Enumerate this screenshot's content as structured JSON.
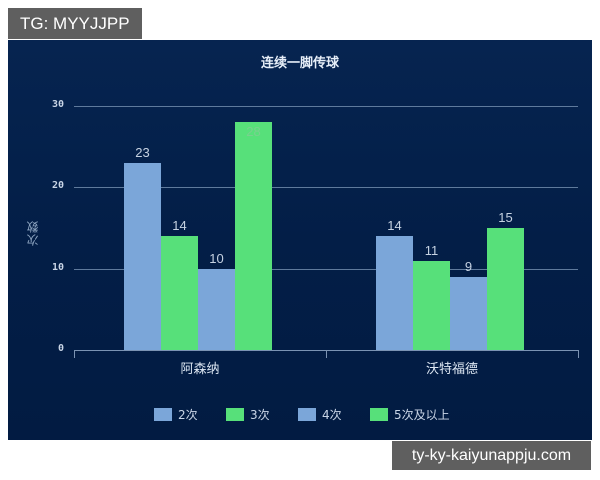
{
  "watermarks": {
    "top_left": "TG: MYYJJPP",
    "bottom_right": "ty-ky-kaiyunappju.com"
  },
  "colors": {
    "background": "#03204a",
    "series_blue": "#7ba6d9",
    "series_green": "#57e07a"
  },
  "chart_data": {
    "type": "bar",
    "title": "连续一脚传球",
    "xlabel": "",
    "ylabel": "次数",
    "ylim": [
      0,
      30
    ],
    "yticks": [
      0,
      10,
      20,
      30
    ],
    "grid": true,
    "legend_position": "bottom",
    "categories": [
      "阿森纳",
      "沃特福德"
    ],
    "series": [
      {
        "name": "2次",
        "color": "#7ba6d9",
        "values": [
          23,
          14
        ]
      },
      {
        "name": "3次",
        "color": "#57e07a",
        "values": [
          14,
          11
        ]
      },
      {
        "name": "4次",
        "color": "#7ba6d9",
        "values": [
          10,
          9
        ]
      },
      {
        "name": "5次及以上",
        "color": "#57e07a",
        "values": [
          28,
          15
        ]
      }
    ]
  }
}
